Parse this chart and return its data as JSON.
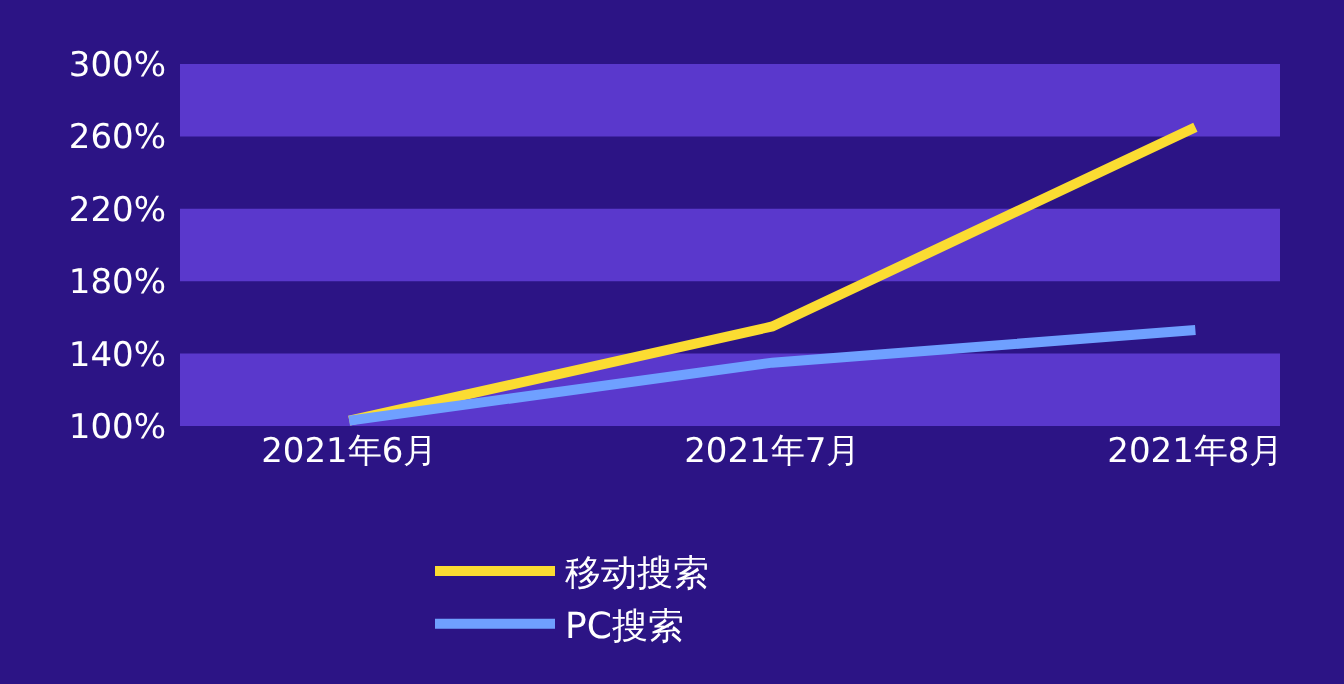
{
  "chart_data": {
    "type": "line",
    "categories": [
      "2021年6月",
      "2021年7月",
      "2021年8月"
    ],
    "series": [
      {
        "name": "移动搜索",
        "color": "#fbdc32",
        "values": [
          103,
          155,
          265
        ]
      },
      {
        "name": "PC搜索",
        "color": "#6fa0ff",
        "values": [
          103,
          135,
          153
        ]
      }
    ],
    "ylim": [
      100,
      300
    ],
    "yticks": [
      {
        "value": 100,
        "label": "100%"
      },
      {
        "value": 140,
        "label": "140%"
      },
      {
        "value": 180,
        "label": "180%"
      },
      {
        "value": 220,
        "label": "220%"
      },
      {
        "value": 260,
        "label": "260%"
      },
      {
        "value": 300,
        "label": "300%"
      }
    ],
    "bands": [
      {
        "axis": "y",
        "from": 100,
        "to": 140,
        "color": "#5a38cc"
      },
      {
        "axis": "y",
        "from": 180,
        "to": 220,
        "color": "#5a38cc"
      },
      {
        "axis": "y",
        "from": 260,
        "to": 300,
        "color": "#5a38cc"
      }
    ],
    "grid": false,
    "legend": "bottom",
    "marker": "none",
    "line_style": "solid"
  }
}
